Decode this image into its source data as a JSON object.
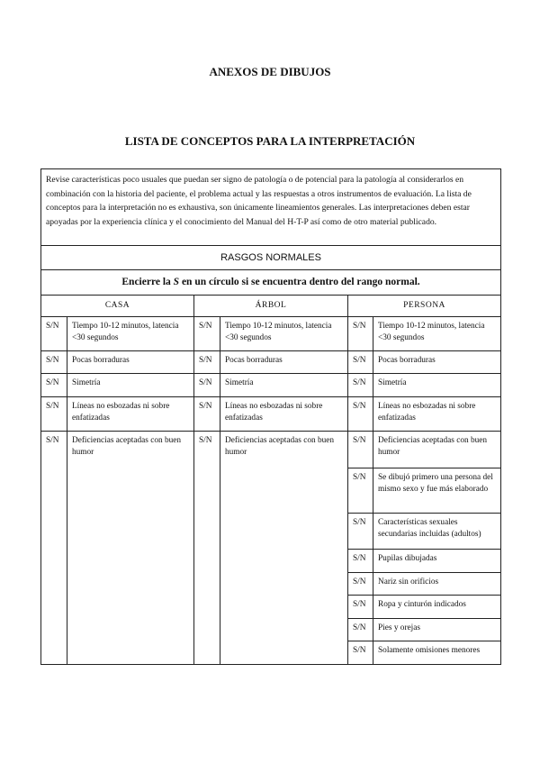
{
  "title": "ANEXOS DE DIBUJOS",
  "subtitle": "LISTA DE CONCEPTOS PARA LA INTERPRETACIÓN",
  "intro": "Revise características poco usuales que puedan ser signo de patología o de potencial para la patología al considerarlos en combinación con la historia del paciente, el problema actual y las respuestas a otros instrumentos de evaluación. La lista de conceptos para la interpretación no es exhaustiva, son únicamente lineamientos generales. Las interpretaciones deben estar apoyadas por la experiencia clínica y el conocimiento del Manual del H-T-P así como de otro material publicado.",
  "section": "RASGOS NORMALES",
  "instruction_pre": "Encierre la ",
  "instruction_s": "S",
  "instruction_post": " en un círculo si se encuentra dentro del rango normal.",
  "columns": [
    "CASA",
    "ÁRBOL",
    "PERSONA"
  ],
  "sn": "S/N",
  "shared_rows": [
    "Tiempo 10-12 minutos, latencia <30 segundos",
    "Pocas borraduras",
    "Simetría",
    "Líneas no esbozadas ni sobre enfatizadas"
  ],
  "casa_last": "Deficiencias aceptadas con buen humor",
  "arbol_last": "Deficiencias aceptadas con buen humor",
  "persona_extra": [
    "Deficiencias aceptadas con buen humor",
    "Se dibujó primero una persona del mismo sexo y fue más elaborado",
    "Características sexuales secundarias incluidas (adultos)",
    "Pupilas dibujadas",
    "Nariz sin orificios",
    "Ropa y cinturón indicados",
    "Pies y orejas",
    "Solamente omisiones menores"
  ]
}
